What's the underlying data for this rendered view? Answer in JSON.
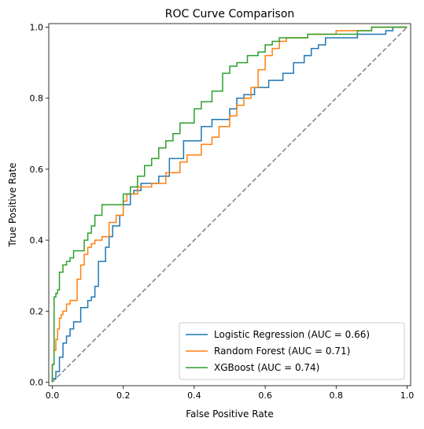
{
  "chart_data": {
    "type": "line",
    "title": "ROC Curve Comparison",
    "xlabel": "False Positive Rate",
    "ylabel": "True Positive Rate",
    "xlim": [
      -0.01,
      1.01
    ],
    "ylim": [
      -0.01,
      1.01
    ],
    "xticks": [
      0.0,
      0.2,
      0.4,
      0.6,
      0.8,
      1.0
    ],
    "xtick_labels": [
      "0.0",
      "0.2",
      "0.4",
      "0.6",
      "0.8",
      "1.0"
    ],
    "yticks": [
      0.0,
      0.2,
      0.4,
      0.6,
      0.8,
      1.0
    ],
    "ytick_labels": [
      "0.0",
      "0.2",
      "0.4",
      "0.6",
      "0.8",
      "1.0"
    ],
    "grid": false,
    "legend_position": "lower-right",
    "series": [
      {
        "name": "Logistic Regression (AUC = 0.66)",
        "color": "#1f77b4",
        "x": [
          0.0,
          0.0,
          0.01,
          0.01,
          0.02,
          0.02,
          0.03,
          0.03,
          0.04,
          0.04,
          0.05,
          0.05,
          0.06,
          0.06,
          0.08,
          0.08,
          0.1,
          0.1,
          0.11,
          0.11,
          0.12,
          0.12,
          0.13,
          0.13,
          0.15,
          0.15,
          0.16,
          0.16,
          0.17,
          0.17,
          0.19,
          0.19,
          0.2,
          0.2,
          0.22,
          0.22,
          0.23,
          0.23,
          0.25,
          0.25,
          0.3,
          0.3,
          0.33,
          0.33,
          0.37,
          0.37,
          0.42,
          0.42,
          0.45,
          0.45,
          0.5,
          0.5,
          0.52,
          0.52,
          0.54,
          0.54,
          0.57,
          0.57,
          0.61,
          0.61,
          0.65,
          0.65,
          0.68,
          0.68,
          0.7,
          0.7,
          0.71,
          0.71,
          0.73,
          0.73,
          0.75,
          0.75,
          0.77,
          0.77,
          0.79,
          0.79,
          0.82,
          0.82,
          0.84,
          0.84,
          0.86,
          0.86,
          0.88,
          0.88,
          0.91,
          0.91,
          0.94,
          0.94,
          0.96,
          0.96,
          1.0,
          1.0
        ],
        "y": [
          0.0,
          0.01,
          0.01,
          0.03,
          0.03,
          0.07,
          0.07,
          0.11,
          0.11,
          0.13,
          0.13,
          0.15,
          0.15,
          0.17,
          0.17,
          0.21,
          0.21,
          0.23,
          0.23,
          0.24,
          0.24,
          0.27,
          0.27,
          0.34,
          0.34,
          0.38,
          0.38,
          0.41,
          0.41,
          0.44,
          0.44,
          0.47,
          0.47,
          0.5,
          0.5,
          0.53,
          0.53,
          0.54,
          0.54,
          0.56,
          0.56,
          0.58,
          0.58,
          0.63,
          0.63,
          0.68,
          0.68,
          0.72,
          0.72,
          0.74,
          0.74,
          0.77,
          0.77,
          0.8,
          0.8,
          0.81,
          0.81,
          0.83,
          0.83,
          0.85,
          0.85,
          0.87,
          0.87,
          0.9,
          0.9,
          0.9,
          0.9,
          0.92,
          0.92,
          0.94,
          0.94,
          0.95,
          0.95,
          0.97,
          0.97,
          0.97,
          0.97,
          0.97,
          0.97,
          0.97,
          0.97,
          0.98,
          0.98,
          0.98,
          0.98,
          0.98,
          0.98,
          0.99,
          0.99,
          1.0,
          1.0,
          1.0
        ]
      },
      {
        "name": "Random Forest (AUC = 0.71)",
        "color": "#ff7f0e",
        "x": [
          0.0,
          0.0,
          0.005,
          0.005,
          0.01,
          0.01,
          0.015,
          0.015,
          0.02,
          0.02,
          0.025,
          0.025,
          0.03,
          0.03,
          0.04,
          0.04,
          0.05,
          0.05,
          0.07,
          0.07,
          0.08,
          0.08,
          0.09,
          0.09,
          0.1,
          0.1,
          0.11,
          0.11,
          0.12,
          0.12,
          0.14,
          0.14,
          0.16,
          0.16,
          0.18,
          0.18,
          0.2,
          0.2,
          0.21,
          0.21,
          0.24,
          0.24,
          0.28,
          0.28,
          0.32,
          0.32,
          0.36,
          0.36,
          0.38,
          0.38,
          0.42,
          0.42,
          0.45,
          0.45,
          0.47,
          0.47,
          0.5,
          0.5,
          0.52,
          0.52,
          0.54,
          0.54,
          0.56,
          0.56,
          0.58,
          0.58,
          0.6,
          0.6,
          0.62,
          0.62,
          0.64,
          0.64,
          0.66,
          0.66,
          0.72,
          0.72,
          0.78,
          0.78,
          0.8,
          0.8,
          0.9,
          0.9,
          1.0
        ],
        "y": [
          0.0,
          0.05,
          0.05,
          0.09,
          0.09,
          0.12,
          0.12,
          0.15,
          0.15,
          0.18,
          0.18,
          0.19,
          0.19,
          0.2,
          0.2,
          0.22,
          0.22,
          0.23,
          0.23,
          0.29,
          0.29,
          0.33,
          0.33,
          0.36,
          0.36,
          0.38,
          0.38,
          0.39,
          0.39,
          0.4,
          0.4,
          0.41,
          0.41,
          0.45,
          0.45,
          0.47,
          0.47,
          0.51,
          0.51,
          0.53,
          0.53,
          0.55,
          0.55,
          0.56,
          0.56,
          0.59,
          0.59,
          0.62,
          0.62,
          0.64,
          0.64,
          0.67,
          0.67,
          0.69,
          0.69,
          0.72,
          0.72,
          0.75,
          0.75,
          0.78,
          0.78,
          0.8,
          0.8,
          0.83,
          0.83,
          0.88,
          0.88,
          0.92,
          0.92,
          0.94,
          0.94,
          0.96,
          0.96,
          0.97,
          0.97,
          0.98,
          0.98,
          0.98,
          0.98,
          0.99,
          0.99,
          1.0,
          1.0
        ]
      },
      {
        "name": "XGBoost (AUC = 0.74)",
        "color": "#2ca02c",
        "x": [
          0.0,
          0.0,
          0.005,
          0.005,
          0.01,
          0.01,
          0.015,
          0.015,
          0.02,
          0.02,
          0.03,
          0.03,
          0.04,
          0.04,
          0.05,
          0.05,
          0.06,
          0.06,
          0.09,
          0.09,
          0.1,
          0.1,
          0.11,
          0.11,
          0.12,
          0.12,
          0.14,
          0.14,
          0.2,
          0.2,
          0.22,
          0.22,
          0.24,
          0.24,
          0.26,
          0.26,
          0.28,
          0.28,
          0.3,
          0.3,
          0.32,
          0.32,
          0.34,
          0.34,
          0.36,
          0.36,
          0.4,
          0.4,
          0.42,
          0.42,
          0.45,
          0.45,
          0.48,
          0.48,
          0.5,
          0.5,
          0.52,
          0.52,
          0.55,
          0.55,
          0.58,
          0.58,
          0.6,
          0.6,
          0.62,
          0.62,
          0.64,
          0.64,
          0.66,
          0.66,
          0.72,
          0.72,
          0.86,
          0.86,
          0.9,
          0.9,
          1.0
        ],
        "y": [
          0.0,
          0.05,
          0.05,
          0.24,
          0.24,
          0.25,
          0.25,
          0.26,
          0.26,
          0.31,
          0.31,
          0.33,
          0.33,
          0.34,
          0.34,
          0.35,
          0.35,
          0.37,
          0.37,
          0.4,
          0.4,
          0.42,
          0.42,
          0.44,
          0.44,
          0.47,
          0.47,
          0.5,
          0.5,
          0.53,
          0.53,
          0.55,
          0.55,
          0.58,
          0.58,
          0.61,
          0.61,
          0.63,
          0.63,
          0.66,
          0.66,
          0.68,
          0.68,
          0.7,
          0.7,
          0.73,
          0.73,
          0.77,
          0.77,
          0.79,
          0.79,
          0.82,
          0.82,
          0.87,
          0.87,
          0.89,
          0.89,
          0.9,
          0.9,
          0.92,
          0.92,
          0.93,
          0.93,
          0.95,
          0.95,
          0.96,
          0.96,
          0.97,
          0.97,
          0.97,
          0.97,
          0.98,
          0.98,
          0.99,
          0.99,
          1.0,
          1.0
        ]
      }
    ],
    "reference_line": {
      "x": [
        0.0,
        1.0
      ],
      "y": [
        0.0,
        1.0
      ],
      "color": "#808080",
      "style": "dashed"
    }
  }
}
